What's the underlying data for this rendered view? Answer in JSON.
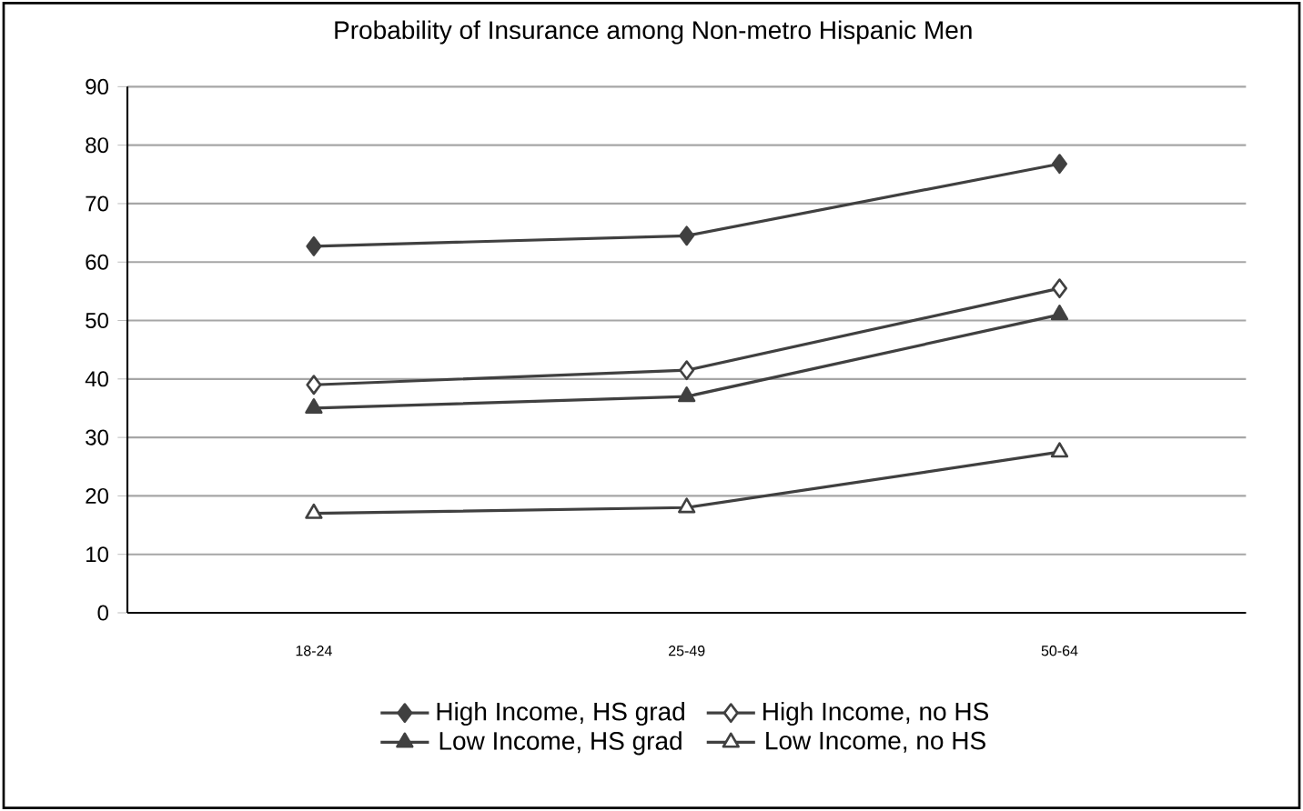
{
  "chart_data": {
    "type": "line",
    "title": "Probability of Insurance among Non-metro Hispanic Men",
    "categories": [
      "18-24",
      "25-49",
      "50-64"
    ],
    "series": [
      {
        "name": "High Income, HS grad",
        "color": "#404040",
        "marker": "diamond",
        "values": [
          62.7,
          64.5,
          76.8
        ]
      },
      {
        "name": "High Income, no HS",
        "color": "#404040",
        "marker": "diamond",
        "values": [
          39,
          41.5,
          55.5
        ]
      },
      {
        "name": "Low Income, HS grad",
        "color": "#404040",
        "marker": "triangle",
        "values": [
          35,
          37,
          51
        ]
      },
      {
        "name": "Low Income, no HS",
        "color": "#404040",
        "marker": "triangle",
        "values": [
          17,
          18,
          27.5
        ]
      }
    ],
    "ylim": [
      0,
      90
    ],
    "yticks": [
      0,
      10,
      20,
      30,
      40,
      50,
      60,
      70,
      80,
      90
    ],
    "grid": "y",
    "legend": "bottom",
    "line_style": "solid"
  }
}
